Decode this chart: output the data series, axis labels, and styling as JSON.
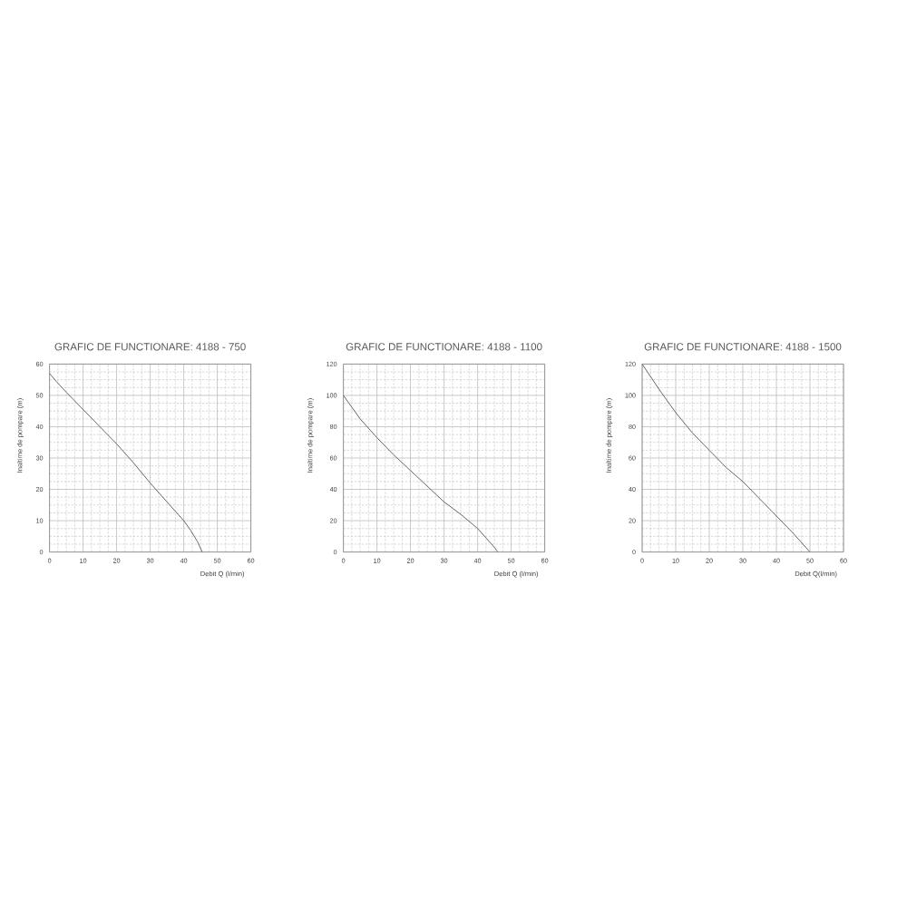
{
  "chart_data": [
    {
      "type": "line",
      "title": "GRAFIC DE FUNCTIONARE: 4188 - 750",
      "xlabel": "Debit  Q (l/min)",
      "ylabel": "Inaltime de pompare (m)",
      "x": [
        0,
        2,
        5,
        10,
        15,
        20,
        25,
        30,
        35,
        40,
        42,
        44,
        45.5
      ],
      "values": [
        57,
        54.5,
        51,
        45.5,
        40,
        34.5,
        28.5,
        22,
        16,
        10,
        7,
        3.5,
        0
      ],
      "color": "#666666",
      "xlim": [
        0,
        60
      ],
      "ylim": [
        0,
        60
      ],
      "xticks": [
        0,
        10,
        20,
        30,
        40,
        50,
        60
      ],
      "yticks": [
        0,
        10,
        20,
        30,
        40,
        50,
        60
      ],
      "grid": true
    },
    {
      "type": "line",
      "title": "GRAFIC DE FUNCTIONARE: 4188 - 1100",
      "xlabel": "Debit  Q (l/min)",
      "ylabel": "Inaltime de pompare (m)",
      "x": [
        0,
        5,
        10,
        15,
        20,
        25,
        30,
        35,
        40,
        45,
        46
      ],
      "values": [
        100,
        85,
        73,
        62,
        52,
        42,
        32,
        24,
        15,
        3,
        0
      ],
      "color": "#666666",
      "xlim": [
        0,
        60
      ],
      "ylim": [
        0,
        120
      ],
      "xticks": [
        0,
        10,
        20,
        30,
        40,
        50,
        60
      ],
      "yticks": [
        0,
        20,
        40,
        60,
        80,
        100,
        120
      ],
      "grid": true
    },
    {
      "type": "line",
      "title": "GRAFIC DE FUNCTIONARE: 4188 - 1500",
      "xlabel": "Debit  Q(l/min)",
      "ylabel": "Inaltime de pompare (m)",
      "x": [
        0,
        5,
        10,
        15,
        20,
        25,
        30,
        35,
        40,
        45,
        50
      ],
      "values": [
        120,
        104,
        89,
        76,
        65,
        54,
        45,
        34,
        23,
        12,
        0
      ],
      "color": "#666666",
      "xlim": [
        0,
        60
      ],
      "ylim": [
        0,
        120
      ],
      "xticks": [
        0,
        10,
        20,
        30,
        40,
        50,
        60
      ],
      "yticks": [
        0,
        20,
        40,
        60,
        80,
        100,
        120
      ],
      "grid": true
    }
  ]
}
